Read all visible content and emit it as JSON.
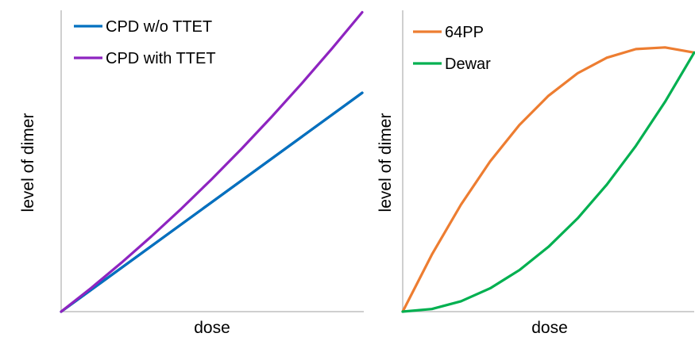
{
  "chart_data": [
    {
      "type": "line",
      "title": "",
      "xlabel": "dose",
      "ylabel": "level of dimer",
      "xlim": [
        0,
        1
      ],
      "ylim": [
        0,
        1
      ],
      "grid": false,
      "legend_position": "top-left",
      "series": [
        {
          "name": "CPD w/o TTET",
          "color": "#0070c0",
          "x": [
            0,
            1
          ],
          "y": [
            0,
            0.76
          ]
        },
        {
          "name": "CPD with TTET",
          "color": "#8e24c0",
          "x": [
            0,
            0.1,
            0.2,
            0.3,
            0.4,
            0.5,
            0.6,
            0.7,
            0.8,
            0.9,
            1.0
          ],
          "y": [
            0,
            0.0824,
            0.1696,
            0.2616,
            0.3584,
            0.46,
            0.5664,
            0.6776,
            0.7936,
            0.9144,
            1.04
          ]
        }
      ]
    },
    {
      "type": "line",
      "title": "",
      "xlabel": "dose",
      "ylabel": "level of dimer",
      "xlim": [
        0,
        1
      ],
      "ylim": [
        0,
        1
      ],
      "grid": false,
      "legend_position": "top-left",
      "series": [
        {
          "name": "64PP",
          "color": "#ed7d31",
          "x": [
            0,
            0.1,
            0.2,
            0.3,
            0.4,
            0.5,
            0.6,
            0.7,
            0.8,
            0.9,
            1.0
          ],
          "y": [
            0,
            0.198,
            0.372,
            0.522,
            0.648,
            0.75,
            0.828,
            0.882,
            0.912,
            0.918,
            0.9
          ]
        },
        {
          "name": "Dewar",
          "color": "#00b050",
          "x": [
            0,
            0.1,
            0.2,
            0.3,
            0.4,
            0.5,
            0.6,
            0.7,
            0.8,
            0.9,
            1.0
          ],
          "y": [
            0,
            0.009,
            0.036,
            0.081,
            0.144,
            0.225,
            0.324,
            0.441,
            0.576,
            0.729,
            0.9
          ]
        }
      ]
    }
  ]
}
